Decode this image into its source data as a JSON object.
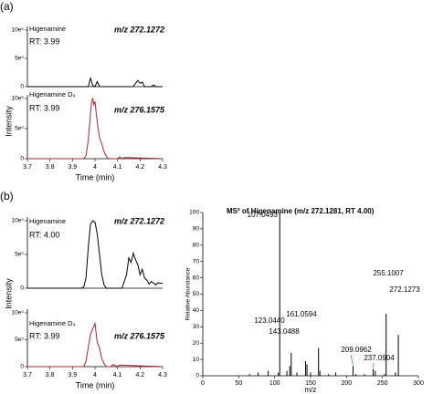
{
  "panel_labels": [
    "(a)",
    "(b)"
  ],
  "chart_data": [
    {
      "type": "line",
      "compound": "Higenamine",
      "rt": "RT: 3.99",
      "mz": "m/z 272.1272",
      "ylabel": "Intensity",
      "xlim": [
        3.7,
        4.3
      ],
      "ylim": [
        0,
        1000000
      ],
      "yticks": [
        0,
        {
          "value": 500000,
          "label": "5e⁵"
        },
        {
          "value": 1000000,
          "label": "10e⁵"
        }
      ],
      "series": [
        {
          "color": "#000000",
          "x": [
            3.7,
            3.97,
            3.98,
            3.99,
            4.0,
            4.01,
            4.02,
            4.03,
            4.17,
            4.18,
            4.19,
            4.2,
            4.21,
            4.22,
            4.25,
            4.26,
            4.27,
            4.3
          ],
          "values": [
            0,
            0,
            150000,
            20000,
            0,
            90000,
            0,
            0,
            0,
            60000,
            110000,
            60000,
            80000,
            0,
            0,
            30000,
            0,
            0
          ]
        }
      ]
    },
    {
      "type": "line",
      "compound": "Higenamine D₄",
      "rt": "RT: 3.99",
      "mz": "m/z 276.1575",
      "xlabel": "Time (min)",
      "xlim": [
        3.7,
        4.3
      ],
      "xticks": [
        3.7,
        3.8,
        3.9,
        4,
        4.1,
        4.2,
        4.3
      ],
      "ylim": [
        0,
        1000000
      ],
      "yticks": [
        0,
        {
          "value": 500000,
          "label": "5e⁵"
        },
        {
          "value": 1000000,
          "label": "10e⁵"
        }
      ],
      "series": [
        {
          "color": "#b22222",
          "x": [
            3.7,
            3.95,
            3.96,
            3.97,
            3.98,
            3.985,
            3.99,
            3.995,
            4.0,
            4.01,
            4.02,
            4.03,
            4.04,
            4.05,
            4.06,
            4.1,
            4.11,
            4.12,
            4.13,
            4.3
          ],
          "values": [
            0,
            0,
            50000,
            300000,
            750000,
            950000,
            1000000,
            900000,
            950000,
            600000,
            350000,
            250000,
            120000,
            40000,
            0,
            0,
            30000,
            0,
            20000,
            0
          ]
        }
      ]
    },
    {
      "type": "line",
      "compound": "Higenamine",
      "rt": "RT: 4.00",
      "mz": "m/z 272.1272",
      "ylabel": "Intensity",
      "xlim": [
        3.7,
        4.3
      ],
      "ylim": [
        0,
        1000000
      ],
      "yticks": [
        0,
        {
          "value": 500000,
          "label": "5e⁵"
        },
        {
          "value": 1000000,
          "label": "10e⁵"
        }
      ],
      "series": [
        {
          "color": "#000000",
          "x": [
            3.7,
            3.94,
            3.95,
            3.96,
            3.97,
            3.98,
            3.99,
            4.0,
            4.01,
            4.02,
            4.03,
            4.04,
            4.05,
            4.1,
            4.12,
            4.14,
            4.15,
            4.16,
            4.17,
            4.18,
            4.19,
            4.2,
            4.21,
            4.22,
            4.23,
            4.24,
            4.25,
            4.27,
            4.28,
            4.3
          ],
          "values": [
            0,
            0,
            20000,
            150000,
            600000,
            950000,
            1000000,
            980000,
            800000,
            500000,
            200000,
            50000,
            0,
            0,
            0,
            200000,
            450000,
            380000,
            520000,
            420000,
            350000,
            200000,
            280000,
            150000,
            120000,
            60000,
            100000,
            50000,
            80000,
            70000
          ]
        }
      ]
    },
    {
      "type": "line",
      "compound": "Higenamine D₄",
      "rt": "RT: 3.99",
      "mz": "m/z 276.1575",
      "xlabel": "Time (min)",
      "xlim": [
        3.7,
        4.3
      ],
      "xticks": [
        3.7,
        3.8,
        3.9,
        4,
        4.1,
        4.2,
        4.3
      ],
      "ylim": [
        0,
        1000000
      ],
      "yticks": [
        0,
        {
          "value": 500000,
          "label": "5e⁵"
        },
        {
          "value": 1000000,
          "label": "10e⁵"
        }
      ],
      "series": [
        {
          "color": "#b22222",
          "x": [
            3.7,
            3.95,
            3.96,
            3.97,
            3.98,
            3.99,
            4.0,
            4.01,
            4.02,
            4.03,
            4.04,
            4.05,
            4.07,
            4.08,
            4.1,
            4.11,
            4.3
          ],
          "values": [
            0,
            0,
            100000,
            350000,
            600000,
            700000,
            800000,
            450000,
            350000,
            150000,
            60000,
            0,
            0,
            40000,
            0,
            30000,
            0
          ]
        }
      ]
    },
    {
      "type": "stem",
      "title": "MS² of Higenamine (m/z 272.1281, RT 4.00)",
      "xlabel": "m/z",
      "ylabel": "Relative Abundance",
      "xlim": [
        0,
        300
      ],
      "xticks": [
        0,
        50,
        100,
        150,
        200,
        250,
        300
      ],
      "ylim": [
        0,
        100
      ],
      "yticks": [
        0,
        10,
        20,
        30,
        40,
        50,
        60,
        70,
        80,
        90,
        100
      ],
      "pointer_color": "#33aa33",
      "series": [
        {
          "color": "#000000",
          "x": [
            107.0493,
            123.044,
            143.0488,
            161.0594,
            209.0962,
            237.0904,
            255.1007,
            272.1273
          ],
          "x_labels": [
            "107.0493",
            "123.0440",
            "143.0488",
            "161.0594",
            "209.0962",
            "237.0904",
            "255.1007",
            "272.1273"
          ],
          "values": [
            100,
            14,
            9,
            17,
            6,
            4,
            38,
            25
          ]
        },
        {
          "color": "#000000",
          "x": [
            65,
            77,
            91,
            105,
            117,
            121,
            131,
            145,
            150,
            163,
            175,
            185,
            213,
            225,
            240,
            253,
            268
          ],
          "values": [
            1,
            2,
            3,
            2,
            3,
            6,
            2,
            7,
            2,
            3,
            1,
            2,
            1,
            1,
            3,
            1,
            2
          ]
        }
      ]
    }
  ]
}
